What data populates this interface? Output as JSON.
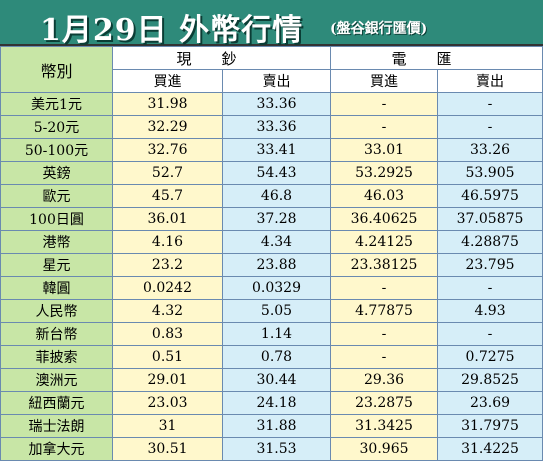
{
  "header": {
    "title": "1月29日 外幣行情",
    "subtitle": "(盤谷銀行匯價)"
  },
  "columns": {
    "currency": "幣別",
    "cash": "現鈔",
    "transfer": "電匯",
    "buy": "買進",
    "sell": "賣出"
  },
  "rows": [
    {
      "name": "美元1元",
      "cash_buy": "31.98",
      "cash_sell": "33.36",
      "tt_buy": "-",
      "tt_sell": "-"
    },
    {
      "name": "5-20元",
      "cash_buy": "32.29",
      "cash_sell": "33.36",
      "tt_buy": "-",
      "tt_sell": "-"
    },
    {
      "name": "50-100元",
      "cash_buy": "32.76",
      "cash_sell": "33.41",
      "tt_buy": "33.01",
      "tt_sell": "33.26"
    },
    {
      "name": "英鎊",
      "cash_buy": "52.7",
      "cash_sell": "54.43",
      "tt_buy": "53.2925",
      "tt_sell": "53.905"
    },
    {
      "name": "歐元",
      "cash_buy": "45.7",
      "cash_sell": "46.8",
      "tt_buy": "46.03",
      "tt_sell": "46.5975"
    },
    {
      "name": "100日圓",
      "cash_buy": "36.01",
      "cash_sell": "37.28",
      "tt_buy": "36.40625",
      "tt_sell": "37.05875"
    },
    {
      "name": "港幣",
      "cash_buy": "4.16",
      "cash_sell": "4.34",
      "tt_buy": "4.24125",
      "tt_sell": "4.28875"
    },
    {
      "name": "星元",
      "cash_buy": "23.2",
      "cash_sell": "23.88",
      "tt_buy": "23.38125",
      "tt_sell": "23.795"
    },
    {
      "name": "韓圓",
      "cash_buy": "0.0242",
      "cash_sell": "0.0329",
      "tt_buy": "-",
      "tt_sell": "-"
    },
    {
      "name": "人民幣",
      "cash_buy": "4.32",
      "cash_sell": "5.05",
      "tt_buy": "4.77875",
      "tt_sell": "4.93"
    },
    {
      "name": "新台幣",
      "cash_buy": "0.83",
      "cash_sell": "1.14",
      "tt_buy": "-",
      "tt_sell": "-"
    },
    {
      "name": "菲披索",
      "cash_buy": "0.51",
      "cash_sell": "0.78",
      "tt_buy": "-",
      "tt_sell": "0.7275"
    },
    {
      "name": "澳洲元",
      "cash_buy": "29.01",
      "cash_sell": "30.44",
      "tt_buy": "29.36",
      "tt_sell": "29.8525"
    },
    {
      "name": "紐西蘭元",
      "cash_buy": "23.03",
      "cash_sell": "24.18",
      "tt_buy": "23.2875",
      "tt_sell": "23.69"
    },
    {
      "name": "瑞士法朗",
      "cash_buy": "31",
      "cash_sell": "31.88",
      "tt_buy": "31.3425",
      "tt_sell": "31.7975"
    },
    {
      "name": "加拿大元",
      "cash_buy": "30.51",
      "cash_sell": "31.53",
      "tt_buy": "30.965",
      "tt_sell": "31.4225"
    }
  ],
  "colors": {
    "header_bg": "#2e8a7a",
    "name_col": "#c8e6a6",
    "buy_col": "#fff8cc",
    "sell_col": "#d6eef8",
    "grid": "#6a8ab0"
  }
}
